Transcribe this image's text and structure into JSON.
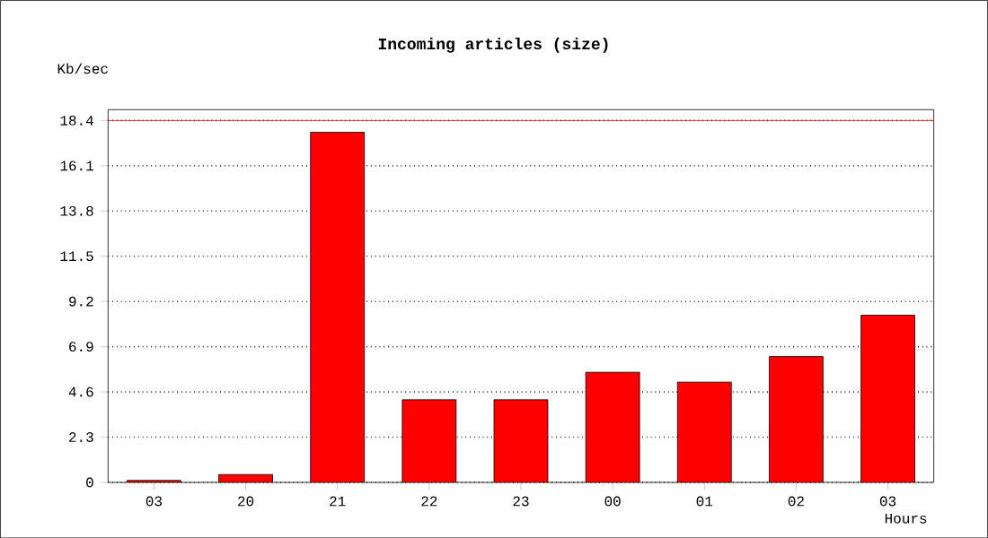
{
  "chart_data": {
    "type": "bar",
    "title": "Incoming articles (size)",
    "xlabel": "Hours",
    "ylabel": "Kb/sec",
    "categories": [
      "03",
      "20",
      "21",
      "22",
      "23",
      "00",
      "01",
      "02",
      "03"
    ],
    "values": [
      0.1,
      0.4,
      17.8,
      4.2,
      4.2,
      5.6,
      5.1,
      6.4,
      8.5
    ],
    "color": "#ff0000",
    "ylim": [
      0,
      18.4
    ],
    "yticks": [
      0,
      2.3,
      4.6,
      6.9,
      9.2,
      11.5,
      13.8,
      16.1,
      18.4
    ],
    "grid": "y",
    "ref_lines": [
      {
        "axis": "y",
        "value": 18.4,
        "color": "#ff0000"
      }
    ]
  }
}
